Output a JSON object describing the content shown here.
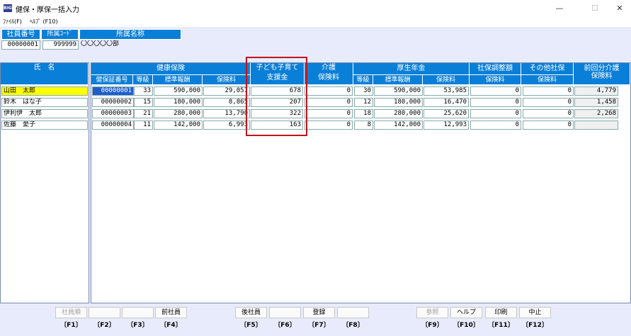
{
  "window": {
    "title": "健保・厚保一括入力",
    "app_icon": "BIG",
    "min": "—",
    "max": "☐",
    "close": "✕"
  },
  "menu": {
    "file": "ﾌｧｲﾙ(F)",
    "help": "ﾍﾙﾌﾟ (F10)"
  },
  "top_form": {
    "employee_no_label": "社員番号",
    "dept_code_label": "所属ｺｰﾄﾞ",
    "dept_name_label": "所属名称",
    "employee_no": "00000001",
    "dept_code": "999999",
    "dept_name": "〇〇〇〇〇部"
  },
  "grid": {
    "name_header": "氏　名",
    "health_header": "健康保険",
    "child_header_1": "子ども子育て",
    "child_header_2": "支援金",
    "care_header": "介護",
    "care_sub": "保険料",
    "pension_header": "厚生年金",
    "adj_header": "社保調整額",
    "adj_sub": "保険料",
    "other_header": "その他社保",
    "other_sub": "保険料",
    "prev_header_1": "前回分介護",
    "prev_header_2": "保険料",
    "sub_cert": "健保証番号",
    "sub_grade": "等級",
    "sub_std": "標準報酬",
    "sub_premium": "保険料",
    "rows": [
      {
        "name": "山田　太郎",
        "cert": "00000001",
        "h_grade": "33",
        "h_std": "590,000",
        "h_prem": "29,057",
        "child": "678",
        "care": "0",
        "p_grade": "30",
        "p_std": "590,000",
        "p_prem": "53,985",
        "adj": "0",
        "other": "0",
        "prev": "4,779"
      },
      {
        "name": "鈴木　はな子",
        "cert": "00000002",
        "h_grade": "15",
        "h_std": "180,000",
        "h_prem": "8,865",
        "child": "207",
        "care": "0",
        "p_grade": "12",
        "p_std": "180,000",
        "p_prem": "16,470",
        "adj": "0",
        "other": "0",
        "prev": "1,458"
      },
      {
        "name": "伊利伊　太郎",
        "cert": "00000003",
        "h_grade": "21",
        "h_std": "280,000",
        "h_prem": "13,790",
        "child": "322",
        "care": "0",
        "p_grade": "18",
        "p_std": "280,000",
        "p_prem": "25,620",
        "adj": "0",
        "other": "0",
        "prev": "2,268"
      },
      {
        "name": "佐藤　愛子",
        "cert": "00000004",
        "h_grade": "11",
        "h_std": "142,000",
        "h_prem": "6,993",
        "child": "163",
        "care": "0",
        "p_grade": "8",
        "p_std": "142,000",
        "p_prem": "12,993",
        "adj": "0",
        "other": "0",
        "prev": ""
      }
    ]
  },
  "fkeys": [
    {
      "label": "社員順",
      "key": "〔F1〕"
    },
    {
      "label": "",
      "key": "〔F2〕"
    },
    {
      "label": "",
      "key": "〔F3〕"
    },
    {
      "label": "前社員",
      "key": "〔F4〕"
    },
    {
      "label": "後社員",
      "key": "〔F5〕"
    },
    {
      "label": "",
      "key": "〔F6〕"
    },
    {
      "label": "登録",
      "key": "〔F7〕"
    },
    {
      "label": "",
      "key": "〔F8〕"
    },
    {
      "label": "参照",
      "key": "〔F9〕"
    },
    {
      "label": "ヘルプ",
      "key": "〔F10〕"
    },
    {
      "label": "印刷",
      "key": "〔F11〕"
    },
    {
      "label": "中止",
      "key": "〔F12〕"
    }
  ]
}
